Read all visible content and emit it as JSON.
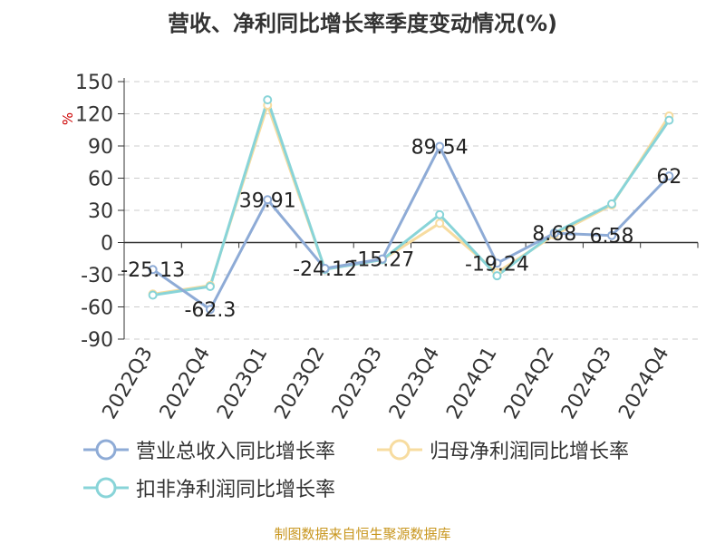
{
  "title": "营收、净利同比增长率季度变动情况(%)",
  "source": "制图数据来自恒生聚源数据库",
  "chart_data": {
    "type": "line",
    "ylabel": "%",
    "ylim": [
      -90,
      150
    ],
    "yticks": [
      150,
      120,
      90,
      60,
      30,
      0,
      -30,
      -60,
      -90
    ],
    "grid": true,
    "legend_position": "bottom",
    "categories": [
      "2022Q3",
      "2022Q4",
      "2023Q1",
      "2023Q2",
      "2023Q3",
      "2023Q4",
      "2024Q1",
      "2024Q2",
      "2024Q3",
      "2024Q4"
    ],
    "series": [
      {
        "name": "营业总收入同比增长率",
        "color": "#8eabd6",
        "values": [
          -25.13,
          -62.3,
          39.91,
          -24.12,
          -15.27,
          89.54,
          -19.24,
          8.68,
          6.58,
          62
        ],
        "labels": [
          "-25.13",
          "-62.3",
          "39.91",
          "-24.12",
          "-15.27",
          "89.54",
          "-19.24",
          "8.68",
          "6.58",
          "62"
        ]
      },
      {
        "name": "归母净利润同比增长率",
        "color": "#f7dca0",
        "values": [
          -48,
          -40,
          128,
          -25,
          -16,
          18,
          -28,
          7,
          35,
          118
        ]
      },
      {
        "name": "扣非净利润同比增长率",
        "color": "#88d4d8",
        "values": [
          -49,
          -41,
          133,
          -25,
          -16,
          26,
          -31,
          9,
          36,
          114
        ]
      }
    ]
  }
}
